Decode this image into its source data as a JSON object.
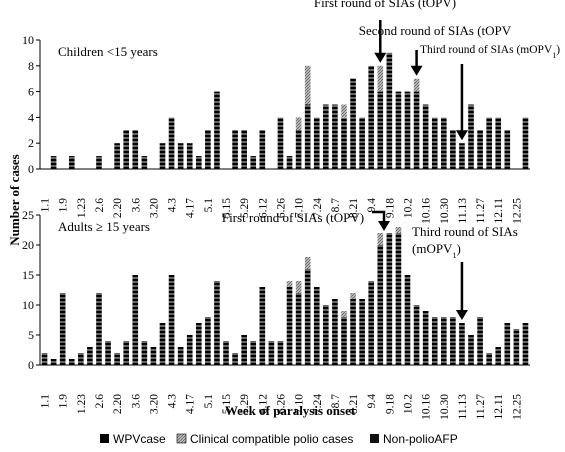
{
  "figure": {
    "ylabel": "Number of cases",
    "xlabel": "Week of paralysis onset"
  },
  "legend": {
    "items": [
      "WPVcase",
      "Clinical compatible polio cases",
      "Non-polioAFP"
    ]
  },
  "colors": {
    "wpv": "#000000",
    "clinical": "#c8c8c8",
    "nonpolio": "#111111",
    "stripe": "#ffffff"
  },
  "chart_data": [
    {
      "type": "bar",
      "stacked": true,
      "panel_label": "Children <15 years",
      "ylim": [
        0,
        10
      ],
      "yticks": [
        0,
        2,
        4,
        6,
        8,
        10
      ],
      "tick_labels": [
        "1.1",
        "1.9",
        "1.23",
        "2.6",
        "2.20",
        "3.6",
        "3.20",
        "4.3",
        "4.17",
        "5.1",
        "5.15",
        "5.29",
        "6.12",
        "6.26",
        "7.10",
        "7.24",
        "8.7",
        "8.21",
        "9.4",
        "9.18",
        "10.2",
        "10.16",
        "10.30",
        "11.13",
        "11.27",
        "12.11",
        "12.25"
      ],
      "series": [
        {
          "name": "WPVcase",
          "values": [
            0,
            1,
            0,
            1,
            0,
            0,
            1,
            0,
            2,
            3,
            3,
            1,
            0,
            2,
            4,
            2,
            2,
            1,
            3,
            6,
            0,
            3,
            3,
            1,
            3,
            0,
            4,
            1,
            3,
            5,
            4,
            5,
            5,
            4,
            7,
            4,
            8,
            6,
            9,
            6,
            6,
            6,
            5,
            4,
            4,
            3,
            2,
            5,
            3,
            4,
            4,
            3,
            0,
            4
          ]
        },
        {
          "name": "Clinical compatible polio cases",
          "values": [
            0,
            0,
            0,
            0,
            0,
            0,
            0,
            0,
            0,
            0,
            0,
            0,
            0,
            0,
            0,
            0,
            0,
            0,
            0,
            0,
            0,
            0,
            0,
            0,
            0,
            0,
            0,
            0,
            1,
            3,
            0,
            0,
            0,
            1,
            0,
            0,
            0,
            2,
            0,
            0,
            0,
            1,
            0,
            0,
            0,
            0,
            0,
            0,
            0,
            0,
            0,
            0,
            0,
            0
          ]
        },
        {
          "name": "Non-polioAFP",
          "values": [
            0,
            0,
            0,
            0,
            0,
            0,
            0,
            0,
            0,
            0,
            0,
            0,
            0,
            0,
            0,
            0,
            0,
            0,
            0,
            0,
            0,
            0,
            0,
            0,
            0,
            0,
            0,
            0,
            0,
            0,
            0,
            0,
            0,
            0,
            0,
            0,
            0,
            0,
            0,
            0,
            0,
            0,
            0,
            0,
            0,
            0,
            0,
            0,
            0,
            0,
            0,
            0,
            0,
            0
          ]
        }
      ],
      "annotations": [
        {
          "text": "First round of SIAs (tOPV)",
          "week": 37
        },
        {
          "text": "Second round of SIAs (tOPV",
          "week": 41
        },
        {
          "text": "Third round of SIAs (mOPV",
          "sub": "1",
          "tail": ")",
          "week": 46
        }
      ]
    },
    {
      "type": "bar",
      "stacked": true,
      "panel_label": "Adults ≥ 15 years",
      "ylim": [
        0,
        25
      ],
      "yticks": [
        0,
        5,
        10,
        15,
        20,
        25
      ],
      "tick_labels": [
        "1.1",
        "1.9",
        "1.23",
        "2.6",
        "2.20",
        "3.6",
        "3.20",
        "4.3",
        "4.17",
        "5.1",
        "5.15",
        "5.29",
        "6.12",
        "6.26",
        "7.10",
        "7.24",
        "8.7",
        "8.21",
        "9.4",
        "9.18",
        "10.2",
        "10.16",
        "10.30",
        "11.13",
        "11.27",
        "12.11",
        "12.25"
      ],
      "series": [
        {
          "name": "WPVcase",
          "values": [
            2,
            1,
            12,
            1,
            2,
            3,
            12,
            4,
            2,
            4,
            15,
            4,
            3,
            7,
            15,
            3,
            5,
            7,
            8,
            14,
            4,
            2,
            5,
            4,
            13,
            4,
            4,
            13,
            12,
            16,
            13,
            10,
            11,
            8,
            11,
            11,
            14,
            20,
            22,
            22,
            15,
            10,
            9,
            8,
            8,
            8,
            7,
            5,
            8,
            2,
            3,
            7,
            6,
            7
          ]
        },
        {
          "name": "Clinical compatible polio cases",
          "values": [
            0,
            0,
            0,
            0,
            0,
            0,
            0,
            0,
            0,
            0,
            0,
            0,
            0,
            0,
            0,
            0,
            0,
            0,
            0,
            0,
            0,
            0,
            0,
            0,
            0,
            0,
            0,
            1,
            2,
            2,
            0,
            0,
            0,
            1,
            1,
            0,
            0,
            2,
            0,
            1,
            0,
            0,
            0,
            0,
            0,
            0,
            0,
            0,
            0,
            0,
            0,
            0,
            0,
            0
          ]
        },
        {
          "name": "Non-polioAFP",
          "values": [
            0,
            0,
            0,
            0,
            0,
            0,
            0,
            0,
            0,
            0,
            0,
            0,
            0,
            0,
            0,
            0,
            0,
            0,
            0,
            0,
            0,
            0,
            0,
            0,
            0,
            0,
            0,
            0,
            0,
            0,
            0,
            0,
            0,
            0,
            0,
            0,
            0,
            0,
            0,
            0,
            0,
            0,
            0,
            0,
            0,
            0,
            0,
            0,
            0,
            0,
            0,
            0,
            0,
            0
          ]
        }
      ],
      "annotations": [
        {
          "text": "First round of SIAs (tOPV)",
          "week": 38
        },
        {
          "text": "Third round of SIAs",
          "text2": "(mOPV",
          "sub": "1",
          "tail": ")",
          "week": 46
        }
      ]
    }
  ]
}
